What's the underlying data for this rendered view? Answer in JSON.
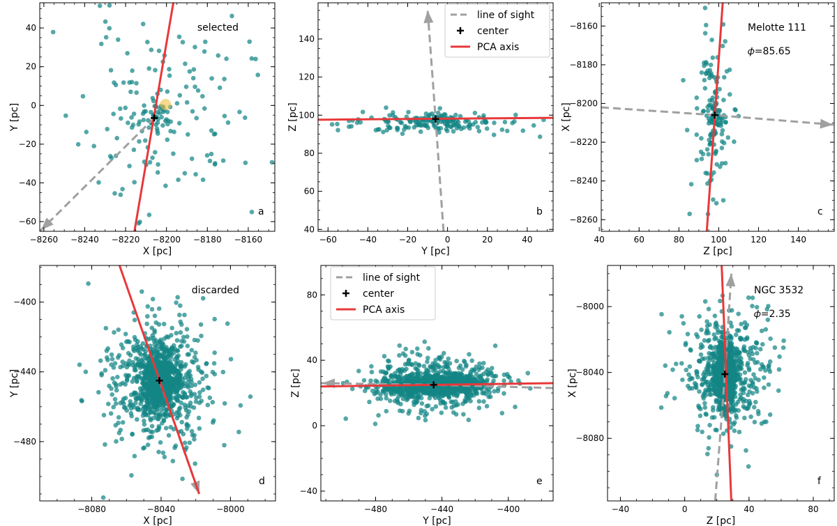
{
  "colors": {
    "points": "#148585",
    "pca": "#e8383a",
    "sight": "#a0a0a0",
    "sun": "#f0c040",
    "center": "#000000"
  },
  "legend_labels": [
    "line of sight",
    "center",
    "PCA axis"
  ],
  "chart_data": [
    {
      "id": "a",
      "type": "scatter",
      "panel_label": "a",
      "annotation": "selected",
      "xlabel": "X  [pc]",
      "ylabel": "Y  [pc]",
      "xlim": [
        -8262,
        -8147
      ],
      "ylim": [
        -65,
        53
      ],
      "xticks": [
        -8260,
        -8240,
        -8220,
        -8200,
        -8180,
        -8160
      ],
      "yticks": [
        -60,
        -40,
        -20,
        0,
        20,
        40
      ],
      "center": [
        -8206,
        -6.5
      ],
      "sun": [
        -8200.5,
        0.5
      ],
      "pca_axis": [
        [
          -8216,
          -67
        ],
        [
          -8196,
          57
        ]
      ],
      "line_of_sight": [
        [
          -8206,
          -6.5
        ],
        [
          -8262,
          -65
        ]
      ],
      "cloud": {
        "n": 140,
        "mx": -8202,
        "my": -5,
        "sx": 20,
        "sy": 25,
        "seed": 11
      },
      "core": {
        "n": 40,
        "mx": -8206,
        "my": -6,
        "sx": 3.5,
        "sy": 3.5,
        "seed": 12
      }
    },
    {
      "id": "b",
      "type": "scatter",
      "panel_label": "b",
      "xlabel": "Y  [pc]",
      "ylabel": "Z  [pc]",
      "xlim": [
        -65,
        53
      ],
      "ylim": [
        39,
        159
      ],
      "xticks": [
        -60,
        -40,
        -20,
        0,
        20,
        40
      ],
      "yticks": [
        40,
        60,
        80,
        100,
        120,
        140
      ],
      "center": [
        -6,
        98
      ],
      "pca_axis": [
        [
          -65,
          97.6
        ],
        [
          53,
          98.6
        ]
      ],
      "line_of_sight": [
        [
          -2,
          39
        ],
        [
          -6,
          98
        ],
        [
          -10,
          155
        ]
      ],
      "legend": true,
      "cloud": {
        "n": 150,
        "mx": -8,
        "my": 96,
        "sx": 22,
        "sy": 3,
        "seed": 21
      },
      "core": {
        "n": 40,
        "mx": -5,
        "my": 98,
        "sx": 5,
        "sy": 1.6,
        "seed": 22
      }
    },
    {
      "id": "c",
      "type": "scatter",
      "panel_label": "c",
      "annotation": "Melotte 111",
      "phi": "𝜙=85.65",
      "xlabel": "Z  [pc]",
      "ylabel": "X  [pc]",
      "xlim": [
        41,
        158
      ],
      "ylim": [
        -8266,
        -8148
      ],
      "xticks": [
        40,
        60,
        80,
        100,
        120,
        140
      ],
      "yticks": [
        -8260,
        -8240,
        -8220,
        -8200,
        -8180,
        -8160
      ],
      "center": [
        98,
        -8206
      ],
      "pca_axis": [
        [
          94,
          -8266
        ],
        [
          102,
          -8148
        ]
      ],
      "line_of_sight": [
        [
          41,
          -8202
        ],
        [
          98,
          -8206
        ],
        [
          158,
          -8211
        ]
      ],
      "cloud": {
        "n": 120,
        "mx": 97,
        "my": -8205,
        "sx": 4.5,
        "sy": 22,
        "seed": 31
      },
      "core": {
        "n": 40,
        "mx": 98,
        "my": -8206,
        "sx": 1.8,
        "sy": 5,
        "seed": 32
      }
    },
    {
      "id": "d",
      "type": "scatter",
      "panel_label": "d",
      "annotation": "discarded",
      "xlabel": "X  [pc]",
      "ylabel": "Y  [pc]",
      "xlim": [
        -8110,
        -7974
      ],
      "ylim": [
        -514,
        -379
      ],
      "xticks": [
        -8080,
        -8040,
        -8000
      ],
      "yticks": [
        -400,
        -440,
        -480
      ],
      "center": [
        -8041,
        -445
      ],
      "pca_axis": [
        [
          -8064,
          -379
        ],
        [
          -8018,
          -510
        ]
      ],
      "line_of_sight": [
        [
          -8041,
          -445
        ],
        [
          -8018,
          -510
        ]
      ],
      "cloud": {
        "n": 520,
        "mx": -8041,
        "my": -445,
        "sx": 16,
        "sy": 20,
        "seed": 41
      },
      "core": {
        "n": 700,
        "mx": -8041,
        "my": -445,
        "sx": 6,
        "sy": 9,
        "seed": 42
      }
    },
    {
      "id": "e",
      "type": "scatter",
      "panel_label": "e",
      "xlabel": "Y  [pc]",
      "ylabel": "Z  [pc]",
      "xlim": [
        -513,
        -373
      ],
      "ylim": [
        -46,
        98
      ],
      "xticks": [
        -480,
        -440,
        -400
      ],
      "yticks": [
        -40,
        0,
        40,
        80
      ],
      "center": [
        -445,
        25
      ],
      "pca_axis": [
        [
          -513,
          24
        ],
        [
          -373,
          26
        ]
      ],
      "line_of_sight": [
        [
          -373,
          23
        ],
        [
          -445,
          25
        ],
        [
          -513,
          26
        ]
      ],
      "legend": true,
      "cloud": {
        "n": 450,
        "mx": -445,
        "my": 25,
        "sx": 20,
        "sy": 9,
        "seed": 51
      },
      "core": {
        "n": 900,
        "mx": -445,
        "my": 25,
        "sx": 14,
        "sy": 3,
        "seed": 52
      }
    },
    {
      "id": "f",
      "type": "scatter",
      "panel_label": "f",
      "annotation": "NGC 3532",
      "phi": "𝜙=2.35",
      "xlabel": "Z  [pc]",
      "ylabel": "X  [pc]",
      "xlim": [
        -48,
        93
      ],
      "ylim": [
        -8118,
        -7975
      ],
      "xticks": [
        -40,
        0,
        40,
        80
      ],
      "yticks": [
        -8000,
        -8040,
        -8080
      ],
      "center": [
        25,
        -8041
      ],
      "pca_axis": [
        [
          23,
          -7975
        ],
        [
          29,
          -8118
        ]
      ],
      "line_of_sight": [
        [
          19,
          -8118
        ],
        [
          25,
          -8041
        ],
        [
          29,
          -7980
        ]
      ],
      "cloud": {
        "n": 420,
        "mx": 25,
        "my": -8041,
        "sx": 15,
        "sy": 18,
        "seed": 61
      },
      "core": {
        "n": 800,
        "mx": 25,
        "my": -8041,
        "sx": 3.5,
        "sy": 9,
        "seed": 62
      }
    }
  ]
}
